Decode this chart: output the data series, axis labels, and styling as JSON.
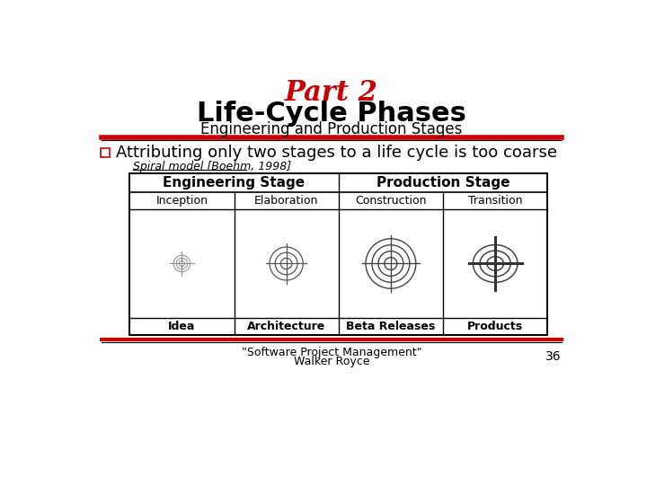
{
  "title_part": "Part 2",
  "title_main": "Life-Cycle Phases",
  "title_sub": "Engineering and Production Stages",
  "title_part_color": "#cc0000",
  "title_main_color": "#000000",
  "title_sub_color": "#000000",
  "red_line_color": "#cc0000",
  "bullet_text": "Attributing only two stages to a life cycle is too coarse",
  "spiral_label": "Spiral model [Boehm, 1998]",
  "col_headers": [
    "Engineering Stage",
    "Production Stage"
  ],
  "row1_labels": [
    "Inception",
    "Elaboration",
    "Construction",
    "Transition"
  ],
  "row2_labels": [
    "Idea",
    "Architecture",
    "Beta Releases",
    "Products"
  ],
  "footer_line1": "\"Software Project Management\"",
  "footer_line2": "Walker Royce",
  "page_number": "36",
  "bg_color": "#ffffff"
}
